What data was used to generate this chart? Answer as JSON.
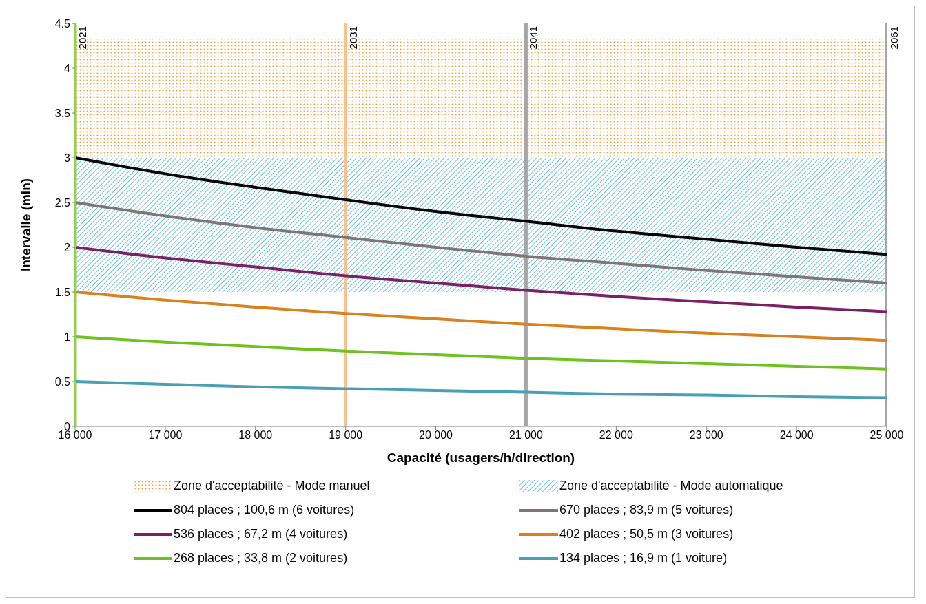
{
  "chart_data": {
    "type": "line",
    "xlabel": "Capacité (usagers/h/direction)",
    "ylabel": "Intervalle (min)",
    "x": [
      16000,
      17000,
      18000,
      19000,
      20000,
      21000,
      22000,
      23000,
      24000,
      25000
    ],
    "xlim": [
      16000,
      25000
    ],
    "xticks": [
      {
        "value": 16000,
        "label": "16 000"
      },
      {
        "value": 17000,
        "label": "17 000"
      },
      {
        "value": 18000,
        "label": "18 000"
      },
      {
        "value": 19000,
        "label": "19 000"
      },
      {
        "value": 20000,
        "label": "20 000"
      },
      {
        "value": 21000,
        "label": "21 000"
      },
      {
        "value": 22000,
        "label": "22 000"
      },
      {
        "value": 23000,
        "label": "23 000"
      },
      {
        "value": 24000,
        "label": "24 000"
      },
      {
        "value": 25000,
        "label": "25 000"
      }
    ],
    "ylim": [
      0,
      4.5
    ],
    "yticks": [
      0,
      0.5,
      1,
      1.5,
      2,
      2.5,
      3,
      3.5,
      4,
      4.5
    ],
    "grid": false,
    "legend": "bottom",
    "marker": "none",
    "line_style": "solid",
    "series": [
      {
        "name": "804 places ; 100,6 m (6 voitures)",
        "color": "#000000",
        "values": [
          3.0,
          2.82,
          2.67,
          2.53,
          2.4,
          2.29,
          2.18,
          2.09,
          2.0,
          1.92
        ]
      },
      {
        "name": "670 places ; 83,9 m (5 voitures)",
        "color": "#7f7673",
        "values": [
          2.5,
          2.35,
          2.22,
          2.11,
          2.0,
          1.9,
          1.82,
          1.74,
          1.67,
          1.6
        ]
      },
      {
        "name": "536 places ; 67,2 m (4 voitures)",
        "color": "#7b1f67",
        "values": [
          2.0,
          1.88,
          1.78,
          1.68,
          1.6,
          1.52,
          1.45,
          1.39,
          1.33,
          1.28
        ]
      },
      {
        "name": "402 places ; 50,5 m (3 voitures)",
        "color": "#d9821b",
        "values": [
          1.5,
          1.41,
          1.33,
          1.26,
          1.2,
          1.14,
          1.09,
          1.04,
          1.0,
          0.96
        ]
      },
      {
        "name": "268 places ; 33,8 m (2 voitures)",
        "color": "#6ec21e",
        "values": [
          1.0,
          0.94,
          0.89,
          0.84,
          0.8,
          0.76,
          0.73,
          0.7,
          0.67,
          0.64
        ]
      },
      {
        "name": "134 places ; 16,9 m (1 voiture)",
        "color": "#4a9fb5",
        "values": [
          0.5,
          0.47,
          0.44,
          0.42,
          0.4,
          0.38,
          0.36,
          0.35,
          0.33,
          0.32
        ]
      }
    ],
    "bands": [
      {
        "axis": "y",
        "from": 3,
        "to": 4.33,
        "label": "Zone d'acceptabilité - Mode manuel",
        "color": "#f7a541"
      },
      {
        "axis": "y",
        "from": 1.5,
        "to": 3,
        "label": "Zone d'acceptabilité - Mode automatique",
        "color": "#6cc3e0"
      }
    ],
    "ref_lines": [
      {
        "axis": "x",
        "value": 16000,
        "color": "#92d050"
      },
      {
        "axis": "x",
        "value": 19000,
        "color": "#fac090"
      },
      {
        "axis": "x",
        "value": 21000,
        "color": "#a6a6a6"
      },
      {
        "axis": "x",
        "value": 25000,
        "color": "#a6a6a6"
      }
    ],
    "annotations": [
      {
        "text": "2021",
        "x": 16000,
        "y": 4.5
      },
      {
        "text": "2031",
        "x": 19000,
        "y": 4.5
      },
      {
        "text": "2041",
        "x": 21000,
        "y": 4.5
      },
      {
        "text": "2061",
        "x": 25000,
        "y": 4.5
      }
    ]
  }
}
